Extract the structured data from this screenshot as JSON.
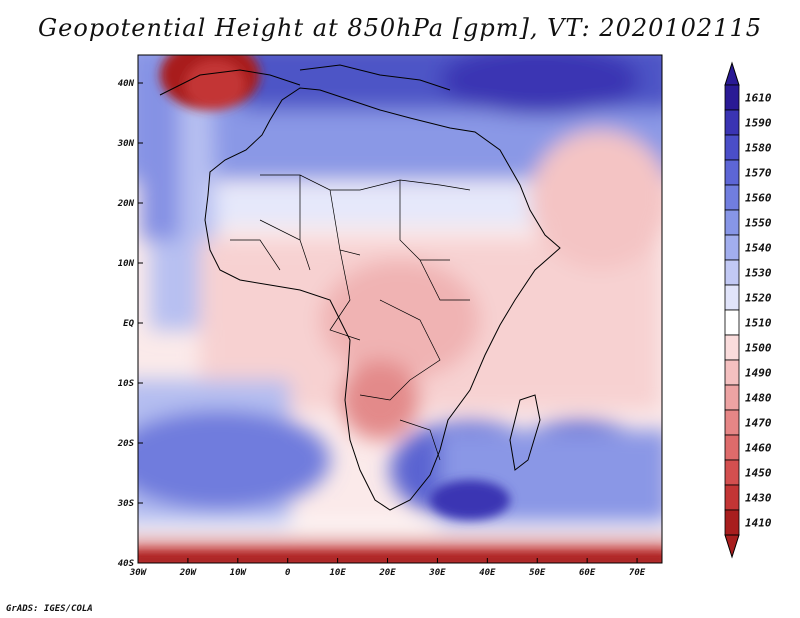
{
  "title": "Geopotential Height at 850hPa [gpm], VT: 2020102115",
  "footer": "GrADS: IGES/COLA",
  "x_ticks": [
    "30W",
    "20W",
    "10W",
    "0",
    "10E",
    "20E",
    "30E",
    "40E",
    "50E",
    "60E",
    "70E"
  ],
  "y_ticks": [
    "40N",
    "30N",
    "20N",
    "10N",
    "EQ",
    "10S",
    "20S",
    "30S",
    "40S"
  ],
  "colorbar": [
    {
      "label": "1610",
      "color": "#2a1a95"
    },
    {
      "label": "1590",
      "color": "#3a34b3"
    },
    {
      "label": "1580",
      "color": "#4a4ec8"
    },
    {
      "label": "1570",
      "color": "#5d66d6"
    },
    {
      "label": "1560",
      "color": "#717edf"
    },
    {
      "label": "1550",
      "color": "#8796e7"
    },
    {
      "label": "1540",
      "color": "#a2aeee"
    },
    {
      "label": "1530",
      "color": "#c2c9f4"
    },
    {
      "label": "1520",
      "color": "#e1e4fa"
    },
    {
      "label": "1510",
      "color": "#ffffff"
    },
    {
      "label": "1500",
      "color": "#fadcdc"
    },
    {
      "label": "1490",
      "color": "#f4c0c0"
    },
    {
      "label": "1480",
      "color": "#eda3a3"
    },
    {
      "label": "1470",
      "color": "#e68686"
    },
    {
      "label": "1460",
      "color": "#de6b6b"
    },
    {
      "label": "1450",
      "color": "#d34f4f"
    },
    {
      "label": "1430",
      "color": "#c33535"
    },
    {
      "label": "1410",
      "color": "#a81e1e"
    }
  ]
}
